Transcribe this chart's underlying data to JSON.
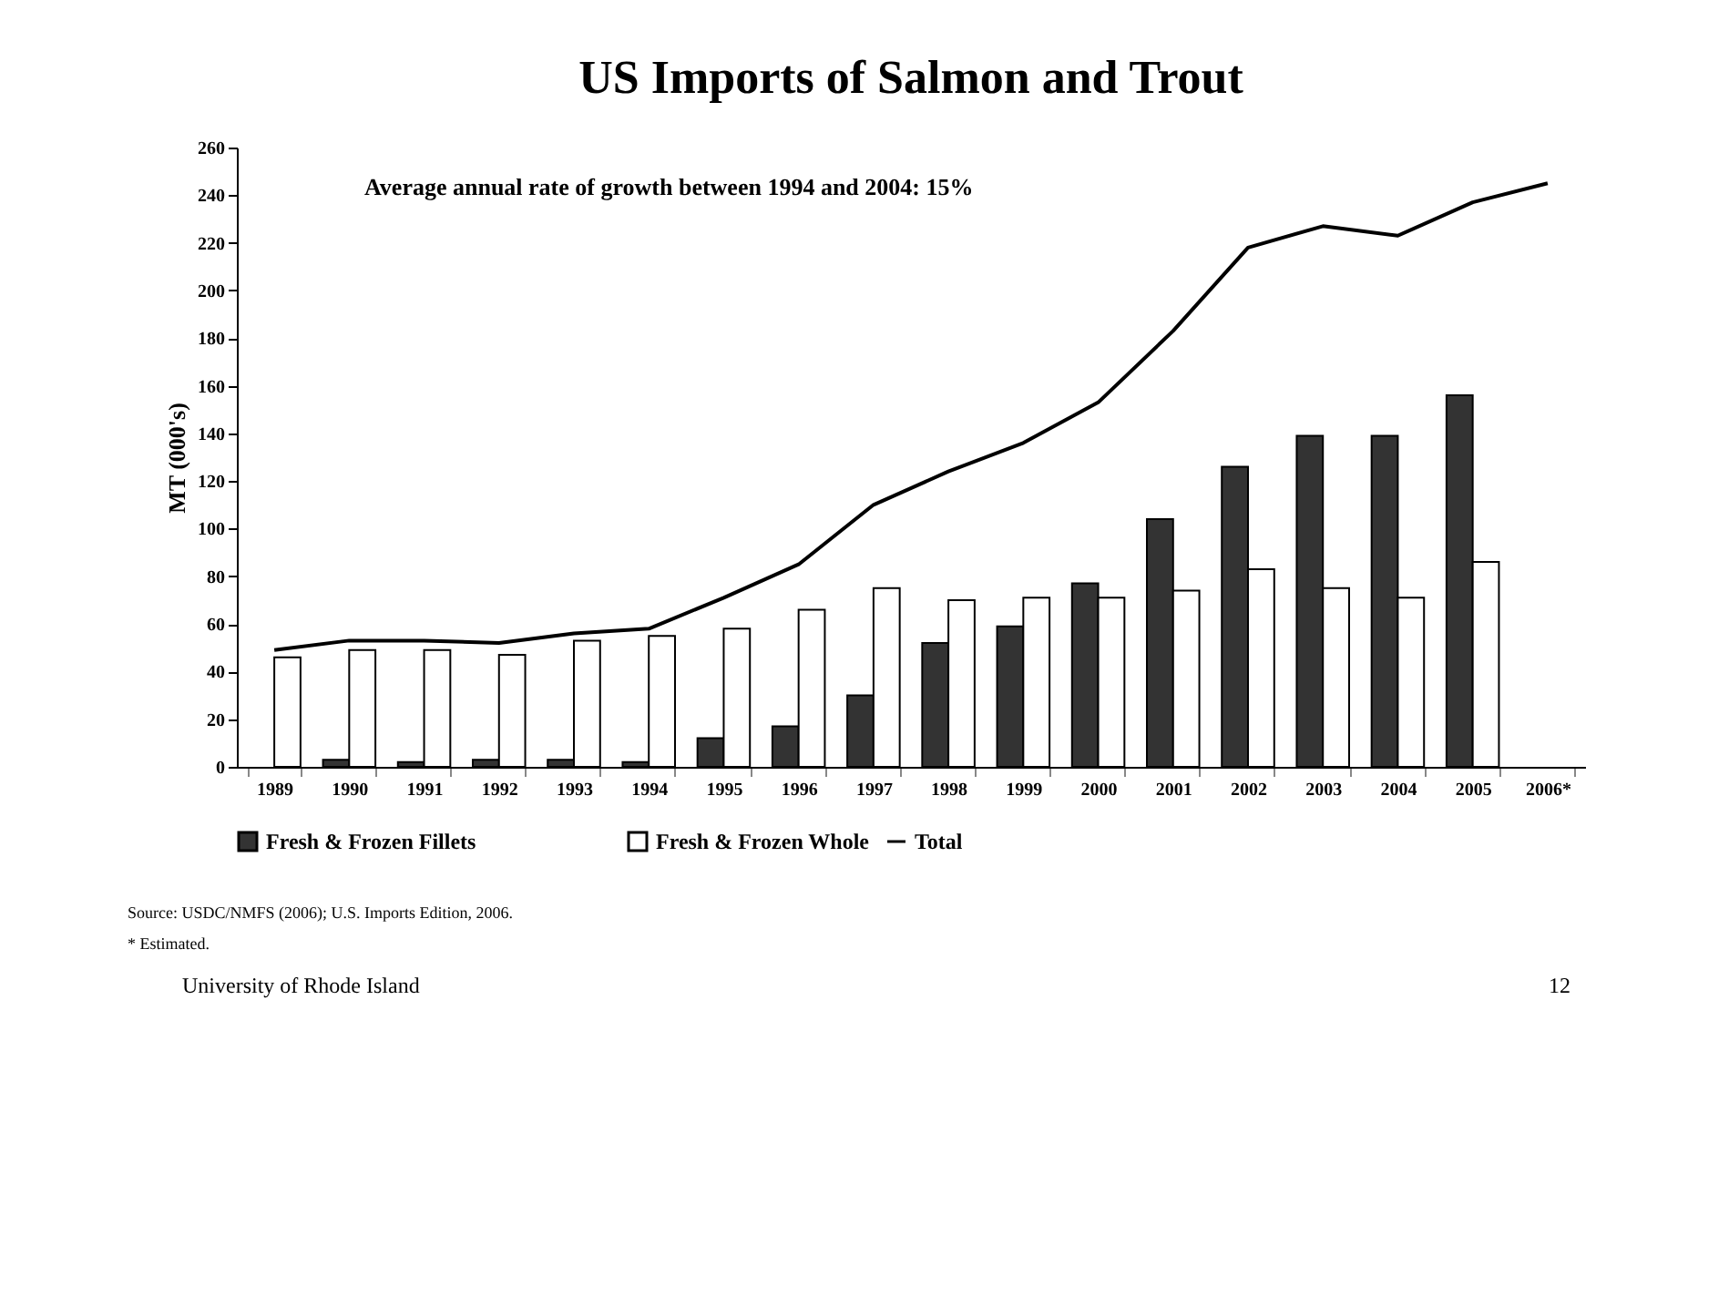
{
  "chart_data": {
    "type": "bar",
    "title": "US Imports of Salmon and Trout",
    "ylabel": "MT (000's)",
    "categories": [
      "1989",
      "1990",
      "1991",
      "1992",
      "1993",
      "1994",
      "1995",
      "1996",
      "1997",
      "1998",
      "1999",
      "2000",
      "2001",
      "2002",
      "2003",
      "2004",
      "2005",
      "2006*"
    ],
    "series": [
      {
        "name": "Fresh & Frozen Fillets",
        "color": "#333333",
        "values": [
          null,
          3,
          2,
          3,
          3,
          2,
          12,
          17,
          30,
          52,
          59,
          77,
          104,
          126,
          139,
          139,
          156,
          null
        ]
      },
      {
        "name": "Fresh & Frozen Whole",
        "color": "#ffffff",
        "values": [
          46,
          49,
          49,
          47,
          53,
          55,
          58,
          66,
          75,
          70,
          71,
          71,
          74,
          83,
          75,
          71,
          86,
          null
        ]
      },
      {
        "name": "Total",
        "type": "line",
        "color": "#000000",
        "values": [
          49,
          53,
          53,
          52,
          56,
          58,
          71,
          85,
          110,
          124,
          136,
          153,
          183,
          218,
          227,
          223,
          237,
          245
        ]
      }
    ],
    "ylim": [
      0,
      260
    ],
    "yticks": [
      0,
      20,
      40,
      60,
      80,
      100,
      120,
      140,
      160,
      180,
      200,
      220,
      240,
      260
    ],
    "grid": false,
    "legend": "bottom",
    "annotations": [
      "Average annual rate of growth between 1994 and 2004: 15%",
      "Source:  USDC/NMFS (2006); U.S. Imports Edition, 2006.",
      "* Estimated.",
      "University of Rhode Island",
      "12"
    ]
  }
}
